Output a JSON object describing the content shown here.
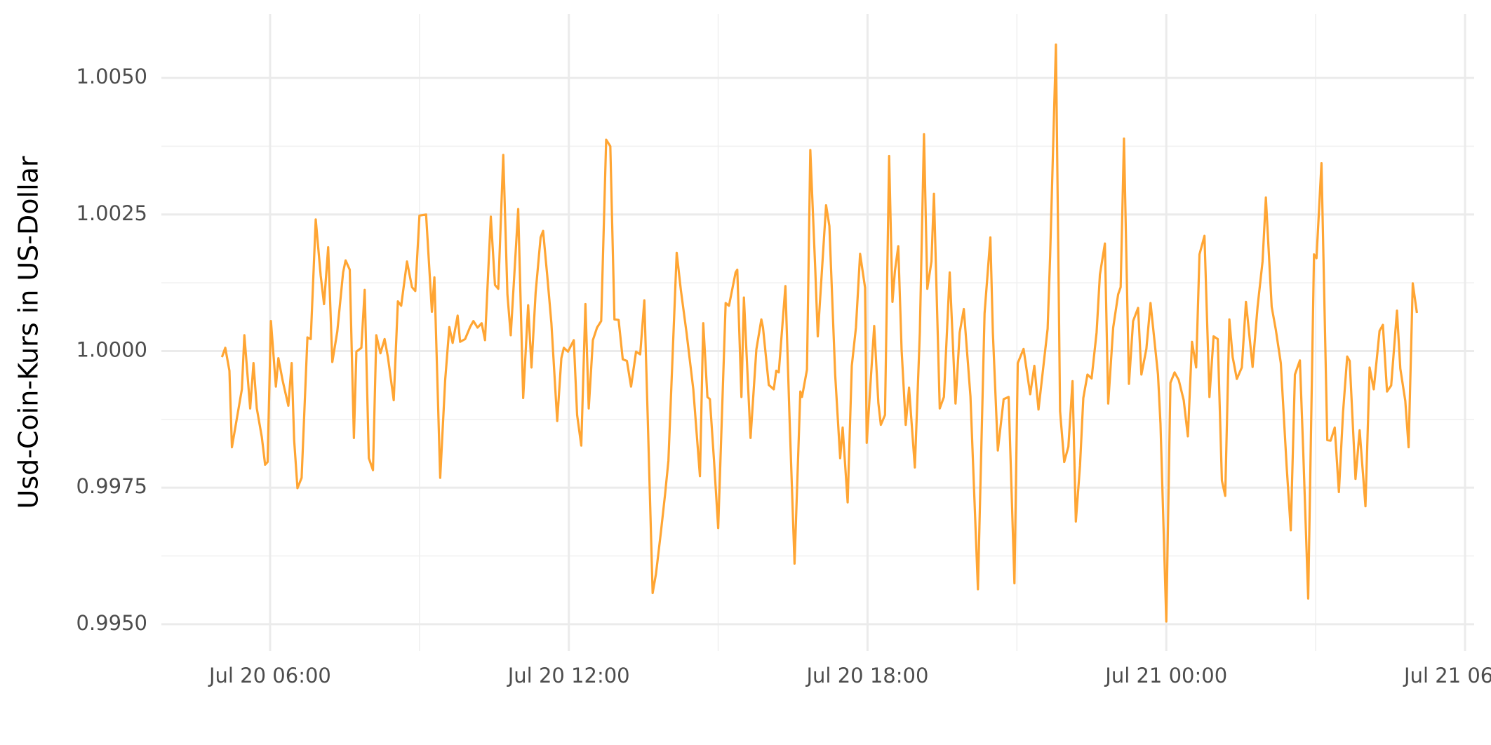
{
  "chart_data": {
    "type": "line",
    "y_label": "Usd-Coin-Kurs in US-Dollar",
    "x": [
      "Jul 20 05:02",
      "Jul 20 05:06",
      "Jul 20 05:11",
      "Jul 20 05:14",
      "Jul 20 05:20",
      "Jul 20 05:26",
      "Jul 20 05:29",
      "Jul 20 05:36",
      "Jul 20 05:40",
      "Jul 20 05:44",
      "Jul 20 05:50",
      "Jul 20 05:54",
      "Jul 20 05:57",
      "Jul 20 06:01",
      "Jul 20 06:07",
      "Jul 20 06:10",
      "Jul 20 06:15",
      "Jul 20 06:22",
      "Jul 20 06:26",
      "Jul 20 06:29",
      "Jul 20 06:33",
      "Jul 20 06:38",
      "Jul 20 06:45",
      "Jul 20 06:49",
      "Jul 20 06:55",
      "Jul 20 07:01",
      "Jul 20 07:05",
      "Jul 20 07:10",
      "Jul 20 07:15",
      "Jul 20 07:21",
      "Jul 20 07:28",
      "Jul 20 07:31",
      "Jul 20 07:36",
      "Jul 20 07:41",
      "Jul 20 07:44",
      "Jul 20 07:50",
      "Jul 20 07:54",
      "Jul 20 07:59",
      "Jul 20 08:04",
      "Jul 20 08:08",
      "Jul 20 08:13",
      "Jul 20 08:18",
      "Jul 20 08:22",
      "Jul 20 08:29",
      "Jul 20 08:34",
      "Jul 20 08:38",
      "Jul 20 08:45",
      "Jul 20 08:51",
      "Jul 20 08:55",
      "Jul 20 09:00",
      "Jul 20 09:08",
      "Jul 20 09:15",
      "Jul 20 09:18",
      "Jul 20 09:25",
      "Jul 20 09:31",
      "Jul 20 09:36",
      "Jul 20 09:40",
      "Jul 20 09:46",
      "Jul 20 09:49",
      "Jul 20 09:55",
      "Jul 20 10:01",
      "Jul 20 10:05",
      "Jul 20 10:10",
      "Jul 20 10:15",
      "Jul 20 10:19",
      "Jul 20 10:26",
      "Jul 20 10:31",
      "Jul 20 10:35",
      "Jul 20 10:41",
      "Jul 20 10:46",
      "Jul 20 10:50",
      "Jul 20 10:59",
      "Jul 20 11:05",
      "Jul 20 11:11",
      "Jul 20 11:15",
      "Jul 20 11:20",
      "Jul 20 11:26",
      "Jul 20 11:29",
      "Jul 20 11:34",
      "Jul 20 11:39",
      "Jul 20 11:46",
      "Jul 20 11:51",
      "Jul 20 11:54",
      "Jul 20 11:59",
      "Jul 20 12:06",
      "Jul 20 12:10",
      "Jul 20 12:15",
      "Jul 20 12:20",
      "Jul 20 12:24",
      "Jul 20 12:29",
      "Jul 20 12:34",
      "Jul 20 12:39",
      "Jul 20 12:45",
      "Jul 20 12:50",
      "Jul 20 12:55",
      "Jul 20 13:00",
      "Jul 20 13:05",
      "Jul 20 13:10",
      "Jul 20 13:15",
      "Jul 20 13:21",
      "Jul 20 13:26",
      "Jul 20 13:31",
      "Jul 20 13:35",
      "Jul 20 13:41",
      "Jul 20 13:45",
      "Jul 20 13:51",
      "Jul 20 13:56",
      "Jul 20 14:00",
      "Jul 20 14:10",
      "Jul 20 14:15",
      "Jul 20 14:22",
      "Jul 20 14:30",
      "Jul 20 14:38",
      "Jul 20 14:42",
      "Jul 20 14:47",
      "Jul 20 14:50",
      "Jul 20 14:55",
      "Jul 20 15:00",
      "Jul 20 15:09",
      "Jul 20 15:13",
      "Jul 20 15:21",
      "Jul 20 15:23",
      "Jul 20 15:28",
      "Jul 20 15:31",
      "Jul 20 15:39",
      "Jul 20 15:46",
      "Jul 20 15:52",
      "Jul 20 15:54",
      "Jul 20 16:01",
      "Jul 20 16:07",
      "Jul 20 16:10",
      "Jul 20 16:13",
      "Jul 20 16:21",
      "Jul 20 16:26",
      "Jul 20 16:32",
      "Jul 20 16:39",
      "Jul 20 16:41",
      "Jul 20 16:47",
      "Jul 20 16:51",
      "Jul 20 16:57",
      "Jul 20 17:00",
      "Jul 20 17:10",
      "Jul 20 17:14",
      "Jul 20 17:21",
      "Jul 20 17:27",
      "Jul 20 17:30",
      "Jul 20 17:36",
      "Jul 20 17:41",
      "Jul 20 17:46",
      "Jul 20 17:51",
      "Jul 20 17:57",
      "Jul 20 17:59",
      "Jul 20 18:05",
      "Jul 20 18:08",
      "Jul 20 18:13",
      "Jul 20 18:16",
      "Jul 20 18:21",
      "Jul 20 18:26",
      "Jul 20 18:30",
      "Jul 20 18:33",
      "Jul 20 18:37",
      "Jul 20 18:41",
      "Jul 20 18:46",
      "Jul 20 18:50",
      "Jul 20 18:57",
      "Jul 20 19:03",
      "Jul 20 19:08",
      "Jul 20 19:12",
      "Jul 20 19:17",
      "Jul 20 19:20",
      "Jul 20 19:27",
      "Jul 20 19:32",
      "Jul 20 19:39",
      "Jul 20 19:46",
      "Jul 20 19:51",
      "Jul 20 19:56",
      "Jul 20 20:04",
      "Jul 20 20:13",
      "Jul 20 20:21",
      "Jul 20 20:28",
      "Jul 20 20:31",
      "Jul 20 20:37",
      "Jul 20 20:44",
      "Jul 20 20:50",
      "Jul 20 20:57",
      "Jul 20 21:01",
      "Jul 20 21:08",
      "Jul 20 21:16",
      "Jul 20 21:21",
      "Jul 20 21:26",
      "Jul 20 21:37",
      "Jul 20 21:40",
      "Jul 20 21:47",
      "Jul 20 21:52",
      "Jul 20 21:57",
      "Jul 20 22:02",
      "Jul 20 22:07",
      "Jul 20 22:11",
      "Jul 20 22:16",
      "Jul 20 22:20",
      "Jul 20 22:25",
      "Jul 20 22:30",
      "Jul 20 22:36",
      "Jul 20 22:40",
      "Jul 20 22:46",
      "Jul 20 22:50",
      "Jul 20 22:56",
      "Jul 20 23:02",
      "Jul 20 23:05",
      "Jul 20 23:09",
      "Jul 20 23:15",
      "Jul 20 23:20",
      "Jul 20 23:26",
      "Jul 20 23:30",
      "Jul 20 23:36",
      "Jul 20 23:41",
      "Jul 20 23:50",
      "Jul 20 23:53",
      "Jul 21 00:00",
      "Jul 21 00:05",
      "Jul 21 00:10",
      "Jul 21 00:15",
      "Jul 21 00:21",
      "Jul 21 00:26",
      "Jul 21 00:31",
      "Jul 21 00:36",
      "Jul 21 00:40",
      "Jul 21 00:46",
      "Jul 21 00:52",
      "Jul 21 00:57",
      "Jul 21 01:02",
      "Jul 21 01:07",
      "Jul 21 01:11",
      "Jul 21 01:16",
      "Jul 21 01:20",
      "Jul 21 01:25",
      "Jul 21 01:31",
      "Jul 21 01:36",
      "Jul 21 01:44",
      "Jul 21 01:50",
      "Jul 21 01:56",
      "Jul 21 02:00",
      "Jul 21 02:07",
      "Jul 21 02:12",
      "Jul 21 02:18",
      "Jul 21 02:25",
      "Jul 21 02:30",
      "Jul 21 02:35",
      "Jul 21 02:41",
      "Jul 21 02:45",
      "Jul 21 02:51",
      "Jul 21 02:58",
      "Jul 21 03:01",
      "Jul 21 03:07",
      "Jul 21 03:14",
      "Jul 21 03:18",
      "Jul 21 03:23",
      "Jul 21 03:28",
      "Jul 21 03:33",
      "Jul 21 03:38",
      "Jul 21 03:41",
      "Jul 21 03:48",
      "Jul 21 03:53",
      "Jul 21 04:00",
      "Jul 21 04:05",
      "Jul 21 04:10",
      "Jul 21 04:17",
      "Jul 21 04:21",
      "Jul 21 04:26",
      "Jul 21 04:31",
      "Jul 21 04:38",
      "Jul 21 04:42",
      "Jul 21 04:48",
      "Jul 21 04:52",
      "Jul 21 04:57",
      "Jul 21 05:02"
    ],
    "values": [
      0.99989,
      1.00006,
      0.99964,
      0.99824,
      0.99877,
      0.9993,
      1.00029,
      0.99895,
      0.99978,
      0.99895,
      0.99843,
      0.99792,
      0.99797,
      1.00055,
      0.99935,
      0.99987,
      0.99947,
      0.999,
      0.99978,
      0.99837,
      0.99749,
      0.99768,
      1.00025,
      1.00022,
      1.00241,
      1.00138,
      1.00086,
      1.0019,
      0.9998,
      1.00036,
      1.00144,
      1.00166,
      1.00149,
      0.99841,
      0.99999,
      1.00006,
      1.00112,
      0.99804,
      0.99782,
      1.00029,
      0.99996,
      1.00022,
      0.99989,
      0.9991,
      1.00091,
      1.00083,
      1.00164,
      1.00117,
      1.0011,
      1.00248,
      1.0025,
      1.00072,
      1.00135,
      0.99768,
      0.99947,
      1.00044,
      1.00015,
      1.00065,
      1.00017,
      1.00022,
      1.00044,
      1.00055,
      1.00043,
      1.00051,
      1.0002,
      1.00246,
      1.00121,
      1.00114,
      1.00359,
      1.00104,
      1.00029,
      1.0026,
      0.99914,
      1.00084,
      0.9997,
      1.00107,
      1.00208,
      1.0022,
      1.00138,
      1.00051,
      0.99872,
      0.99987,
      1.00006,
      0.99999,
      1.0002,
      0.99883,
      0.99827,
      1.00086,
      0.99895,
      1.0002,
      1.00043,
      1.00055,
      1.00387,
      1.00375,
      1.00058,
      1.00057,
      0.99985,
      0.99982,
      0.99935,
      0.99999,
      0.99994,
      1.00093,
      0.99883,
      0.99557,
      0.99592,
      0.99669,
      0.99738,
      0.99799,
      1.0018,
      1.00112,
      1.00032,
      0.9993,
      0.99771,
      1.00051,
      0.99916,
      0.99912,
      0.99799,
      0.99676,
      1.00088,
      1.00083,
      1.00144,
      1.00149,
      0.99916,
      1.00098,
      0.99841,
      1.00003,
      1.00058,
      1.00043,
      0.99938,
      0.9993,
      0.99964,
      0.99961,
      1.00119,
      0.99877,
      0.99611,
      0.99926,
      0.99916,
      0.99966,
      1.00368,
      1.00149,
      1.00027,
      1.00267,
      1.00229,
      0.99956,
      0.99804,
      0.9986,
      0.99723,
      0.99973,
      1.00043,
      1.00178,
      1.00116,
      0.99832,
      0.99975,
      1.00046,
      0.99905,
      0.99865,
      0.99883,
      1.00357,
      1.0009,
      1.00147,
      1.00192,
      1.00003,
      0.99865,
      0.99933,
      0.99787,
      1.00034,
      1.00397,
      1.00114,
      1.00164,
      1.00288,
      0.99895,
      0.99916,
      1.00144,
      0.99904,
      1.00034,
      1.00077,
      0.99917,
      0.99564,
      1.00069,
      1.00208,
      1.00034,
      0.99818,
      0.99912,
      0.99916,
      0.99575,
      0.99978,
      1.00004,
      0.99921,
      0.99973,
      0.99893,
      1.00041,
      1.00173,
      1.00561,
      0.9989,
      0.99797,
      0.99825,
      0.99945,
      0.99688,
      0.9979,
      0.99914,
      0.99957,
      0.9995,
      1.00034,
      1.0014,
      1.00197,
      0.99904,
      1.00043,
      1.00104,
      1.00117,
      1.00389,
      0.9994,
      1.00055,
      1.00079,
      0.99957,
      1.00004,
      1.00088,
      0.99957,
      0.99867,
      0.99505,
      0.99942,
      0.99961,
      0.99947,
      0.9991,
      0.99844,
      1.00017,
      0.9997,
      1.00177,
      1.00211,
      0.99916,
      1.00027,
      1.00022,
      0.99763,
      0.99735,
      1.00058,
      0.99989,
      0.99949,
      0.9997,
      1.0009,
      0.99971,
      1.00081,
      1.00164,
      1.00281,
      1.00081,
      1.00039,
      0.99978,
      0.9979,
      0.99672,
      0.99957,
      0.99983,
      0.99817,
      0.99547,
      1.00177,
      1.0017,
      1.00344,
      0.99837,
      0.99836,
      0.9986,
      0.99742,
      0.99888,
      0.9999,
      0.99982,
      0.99766,
      0.99855,
      0.99716,
      0.9997,
      0.9993,
      1.00037,
      1.00048,
      0.99926,
      0.99937,
      1.00074,
      0.99968,
      0.99909,
      0.99824,
      1.00124,
      1.0007
    ],
    "color": "#ffa533",
    "xlim": [
      "Jul 20 03:49",
      "Jul 21 06:11"
    ],
    "xticks": [
      "Jul 20 06:00",
      "Jul 20 12:00",
      "Jul 20 18:00",
      "Jul 21 00:00",
      "Jul 21 06:00"
    ],
    "ylim": [
      0.99451,
      1.00617
    ],
    "yticks": [
      {
        "value": 0.995,
        "label": "0.9950"
      },
      {
        "value": 0.9975,
        "label": "0.9975"
      },
      {
        "value": 1,
        "label": "1.0000"
      },
      {
        "value": 1.0025,
        "label": "1.0025"
      },
      {
        "value": 1.005,
        "label": "1.0050"
      }
    ],
    "grid": true
  }
}
